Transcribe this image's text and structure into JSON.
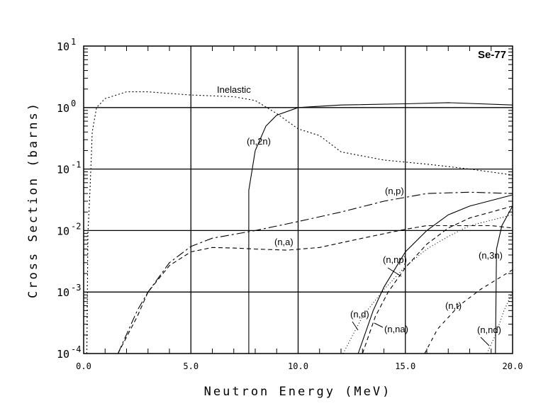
{
  "chart_data": {
    "type": "line",
    "title": "Se-77",
    "xlabel": "Neutron Energy (MeV)",
    "ylabel": "Cross Section (barns)",
    "xlim": [
      0,
      20
    ],
    "ylim": [
      0.0001,
      10
    ],
    "yscale": "log",
    "grid": true,
    "x_ticks": [
      "0.0",
      "5.0",
      "10.0",
      "15.0",
      "20.0"
    ],
    "y_ticks": [
      {
        "base": "10",
        "exp": "1"
      },
      {
        "base": "10",
        "exp": "0"
      },
      {
        "base": "10",
        "exp": "-1"
      },
      {
        "base": "10",
        "exp": "-2"
      },
      {
        "base": "10",
        "exp": "-3"
      },
      {
        "base": "10",
        "exp": "-4"
      }
    ],
    "series": [
      {
        "name": "Inelastic",
        "dash": "2,3",
        "points": [
          [
            0.15,
            0.0001
          ],
          [
            0.2,
            0.009
          ],
          [
            0.3,
            0.05
          ],
          [
            0.4,
            0.4
          ],
          [
            0.6,
            1.0
          ],
          [
            1.0,
            1.4
          ],
          [
            2,
            1.8
          ],
          [
            3,
            1.8
          ],
          [
            5,
            1.6
          ],
          [
            7,
            1.5
          ],
          [
            8,
            1.3
          ],
          [
            9,
            0.8
          ],
          [
            10,
            0.45
          ],
          [
            11,
            0.35
          ],
          [
            12,
            0.19
          ],
          [
            14,
            0.14
          ],
          [
            16,
            0.12
          ],
          [
            18,
            0.1
          ],
          [
            20,
            0.08
          ]
        ]
      },
      {
        "name": "(n,2n)",
        "dash": "",
        "points": [
          [
            7.7,
            0.0001
          ],
          [
            7.7,
            0.045
          ],
          [
            8,
            0.2
          ],
          [
            8.5,
            0.5
          ],
          [
            9,
            0.75
          ],
          [
            10,
            1.0
          ],
          [
            12,
            1.1
          ],
          [
            15,
            1.15
          ],
          [
            17,
            1.2
          ],
          [
            20,
            1.1
          ]
        ]
      },
      {
        "name": "(n,p)",
        "dash": "12,4,3,4",
        "points": [
          [
            1.6,
            0.0001
          ],
          [
            2.5,
            0.0005
          ],
          [
            3,
            0.001
          ],
          [
            4,
            0.003
          ],
          [
            5,
            0.0055
          ],
          [
            6,
            0.0075
          ],
          [
            8,
            0.01
          ],
          [
            10,
            0.014
          ],
          [
            12,
            0.02
          ],
          [
            14,
            0.03
          ],
          [
            16,
            0.04
          ],
          [
            18,
            0.042
          ],
          [
            20,
            0.04
          ]
        ]
      },
      {
        "name": "(n,a)",
        "dash": "6,4",
        "points": [
          [
            1.6,
            0.0001
          ],
          [
            2.5,
            0.0004
          ],
          [
            3,
            0.001
          ],
          [
            4,
            0.0027
          ],
          [
            5,
            0.0045
          ],
          [
            6,
            0.0053
          ],
          [
            7,
            0.0052
          ],
          [
            8,
            0.005
          ],
          [
            9.5,
            0.0048
          ],
          [
            11,
            0.0053
          ],
          [
            13,
            0.0075
          ],
          [
            15,
            0.0105
          ],
          [
            16,
            0.012
          ],
          [
            19,
            0.012
          ],
          [
            20,
            0.011
          ]
        ]
      },
      {
        "name": "(n,np)",
        "dash": "",
        "points": [
          [
            12.8,
            0.0001
          ],
          [
            13.5,
            0.0005
          ],
          [
            14,
            0.0012
          ],
          [
            15,
            0.0045
          ],
          [
            16,
            0.01
          ],
          [
            17,
            0.018
          ],
          [
            18,
            0.025
          ],
          [
            20,
            0.038
          ]
        ]
      },
      {
        "name": "(n,na)",
        "dash": "6,4",
        "points": [
          [
            13,
            0.0001
          ],
          [
            13.6,
            0.0004
          ],
          [
            14.2,
            0.001
          ],
          [
            15,
            0.0025
          ],
          [
            16,
            0.006
          ],
          [
            17,
            0.011
          ],
          [
            18,
            0.016
          ],
          [
            20,
            0.025
          ]
        ]
      },
      {
        "name": "(n,d)",
        "dash": "1,3",
        "points": [
          [
            12.1,
            0.0001
          ],
          [
            13,
            0.0004
          ],
          [
            14,
            0.0011
          ],
          [
            15,
            0.0026
          ],
          [
            16,
            0.005
          ],
          [
            17,
            0.008
          ],
          [
            18,
            0.012
          ],
          [
            20,
            0.018
          ]
        ]
      },
      {
        "name": "(n,3n)",
        "dash": "",
        "points": [
          [
            19.2,
            0.0001
          ],
          [
            19.25,
            0.005
          ],
          [
            19.5,
            0.012
          ],
          [
            20,
            0.025
          ]
        ]
      },
      {
        "name": "(n,t)",
        "dash": "5,5",
        "points": [
          [
            15.9,
            0.0001
          ],
          [
            16.5,
            0.00025
          ],
          [
            17.5,
            0.0006
          ],
          [
            18.5,
            0.0011
          ],
          [
            20,
            0.0023
          ]
        ]
      },
      {
        "name": "(n,nd)",
        "dash": "1,3",
        "points": [
          [
            18.8,
            0.0001
          ],
          [
            19.2,
            0.0002
          ],
          [
            19.6,
            0.0005
          ],
          [
            20,
            0.001
          ]
        ]
      }
    ]
  }
}
